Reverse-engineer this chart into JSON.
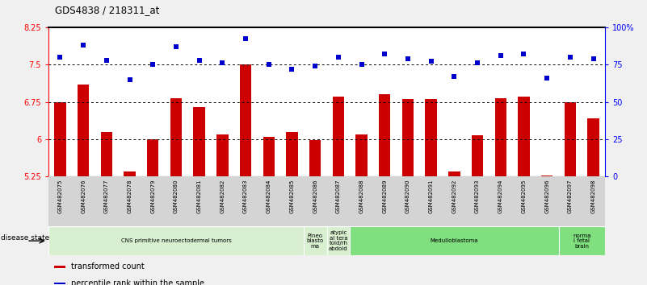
{
  "title": "GDS4838 / 218311_at",
  "samples": [
    "GSM482075",
    "GSM482076",
    "GSM482077",
    "GSM482078",
    "GSM482079",
    "GSM482080",
    "GSM482081",
    "GSM482082",
    "GSM482083",
    "GSM482084",
    "GSM482085",
    "GSM482086",
    "GSM482087",
    "GSM482088",
    "GSM482089",
    "GSM482090",
    "GSM482091",
    "GSM482092",
    "GSM482093",
    "GSM482094",
    "GSM482095",
    "GSM482096",
    "GSM482097",
    "GSM482098"
  ],
  "bar_values": [
    6.75,
    7.1,
    6.15,
    5.35,
    6.0,
    6.83,
    6.65,
    6.1,
    7.5,
    6.05,
    6.15,
    5.98,
    6.85,
    6.1,
    6.9,
    6.8,
    6.8,
    5.35,
    6.08,
    6.82,
    6.85,
    5.28,
    6.75,
    6.42
  ],
  "dot_values_pct": [
    80,
    88,
    78,
    65,
    75,
    87,
    78,
    76,
    92,
    75,
    72,
    74,
    80,
    75,
    82,
    79,
    77,
    67,
    76,
    81,
    82,
    66,
    80,
    79
  ],
  "bar_color": "#cc0000",
  "dot_color": "#0000cc",
  "ylim_left": [
    5.25,
    8.25
  ],
  "ylim_right": [
    0,
    100
  ],
  "yticks_left": [
    5.25,
    6.0,
    6.75,
    7.5,
    8.25
  ],
  "yticks_right": [
    0,
    25,
    50,
    75,
    100
  ],
  "ytick_labels_left": [
    "5.25",
    "6",
    "6.75",
    "7.5",
    "8.25"
  ],
  "ytick_labels_right": [
    "0",
    "25",
    "50",
    "75",
    "100%"
  ],
  "hlines": [
    6.0,
    6.75,
    7.5
  ],
  "disease_groups": [
    {
      "label": "CNS primitive neuroectodermal tumors",
      "start": 0,
      "end": 11,
      "color": "#d8f0d0"
    },
    {
      "label": "Pineo\nblasto\nma",
      "start": 11,
      "end": 12,
      "color": "#d8f0d0"
    },
    {
      "label": "atypic\nal tera\ntoid/rh\nabdoid",
      "start": 12,
      "end": 13,
      "color": "#d8f0d0"
    },
    {
      "label": "Medulloblastoma",
      "start": 13,
      "end": 22,
      "color": "#80e080"
    },
    {
      "label": "norma\nl fetal\nbrain",
      "start": 22,
      "end": 24,
      "color": "#80e080"
    }
  ],
  "legend_items": [
    {
      "label": "transformed count",
      "color": "#cc0000"
    },
    {
      "label": "percentile rank within the sample",
      "color": "#0000cc"
    }
  ],
  "disease_state_label": "disease state"
}
